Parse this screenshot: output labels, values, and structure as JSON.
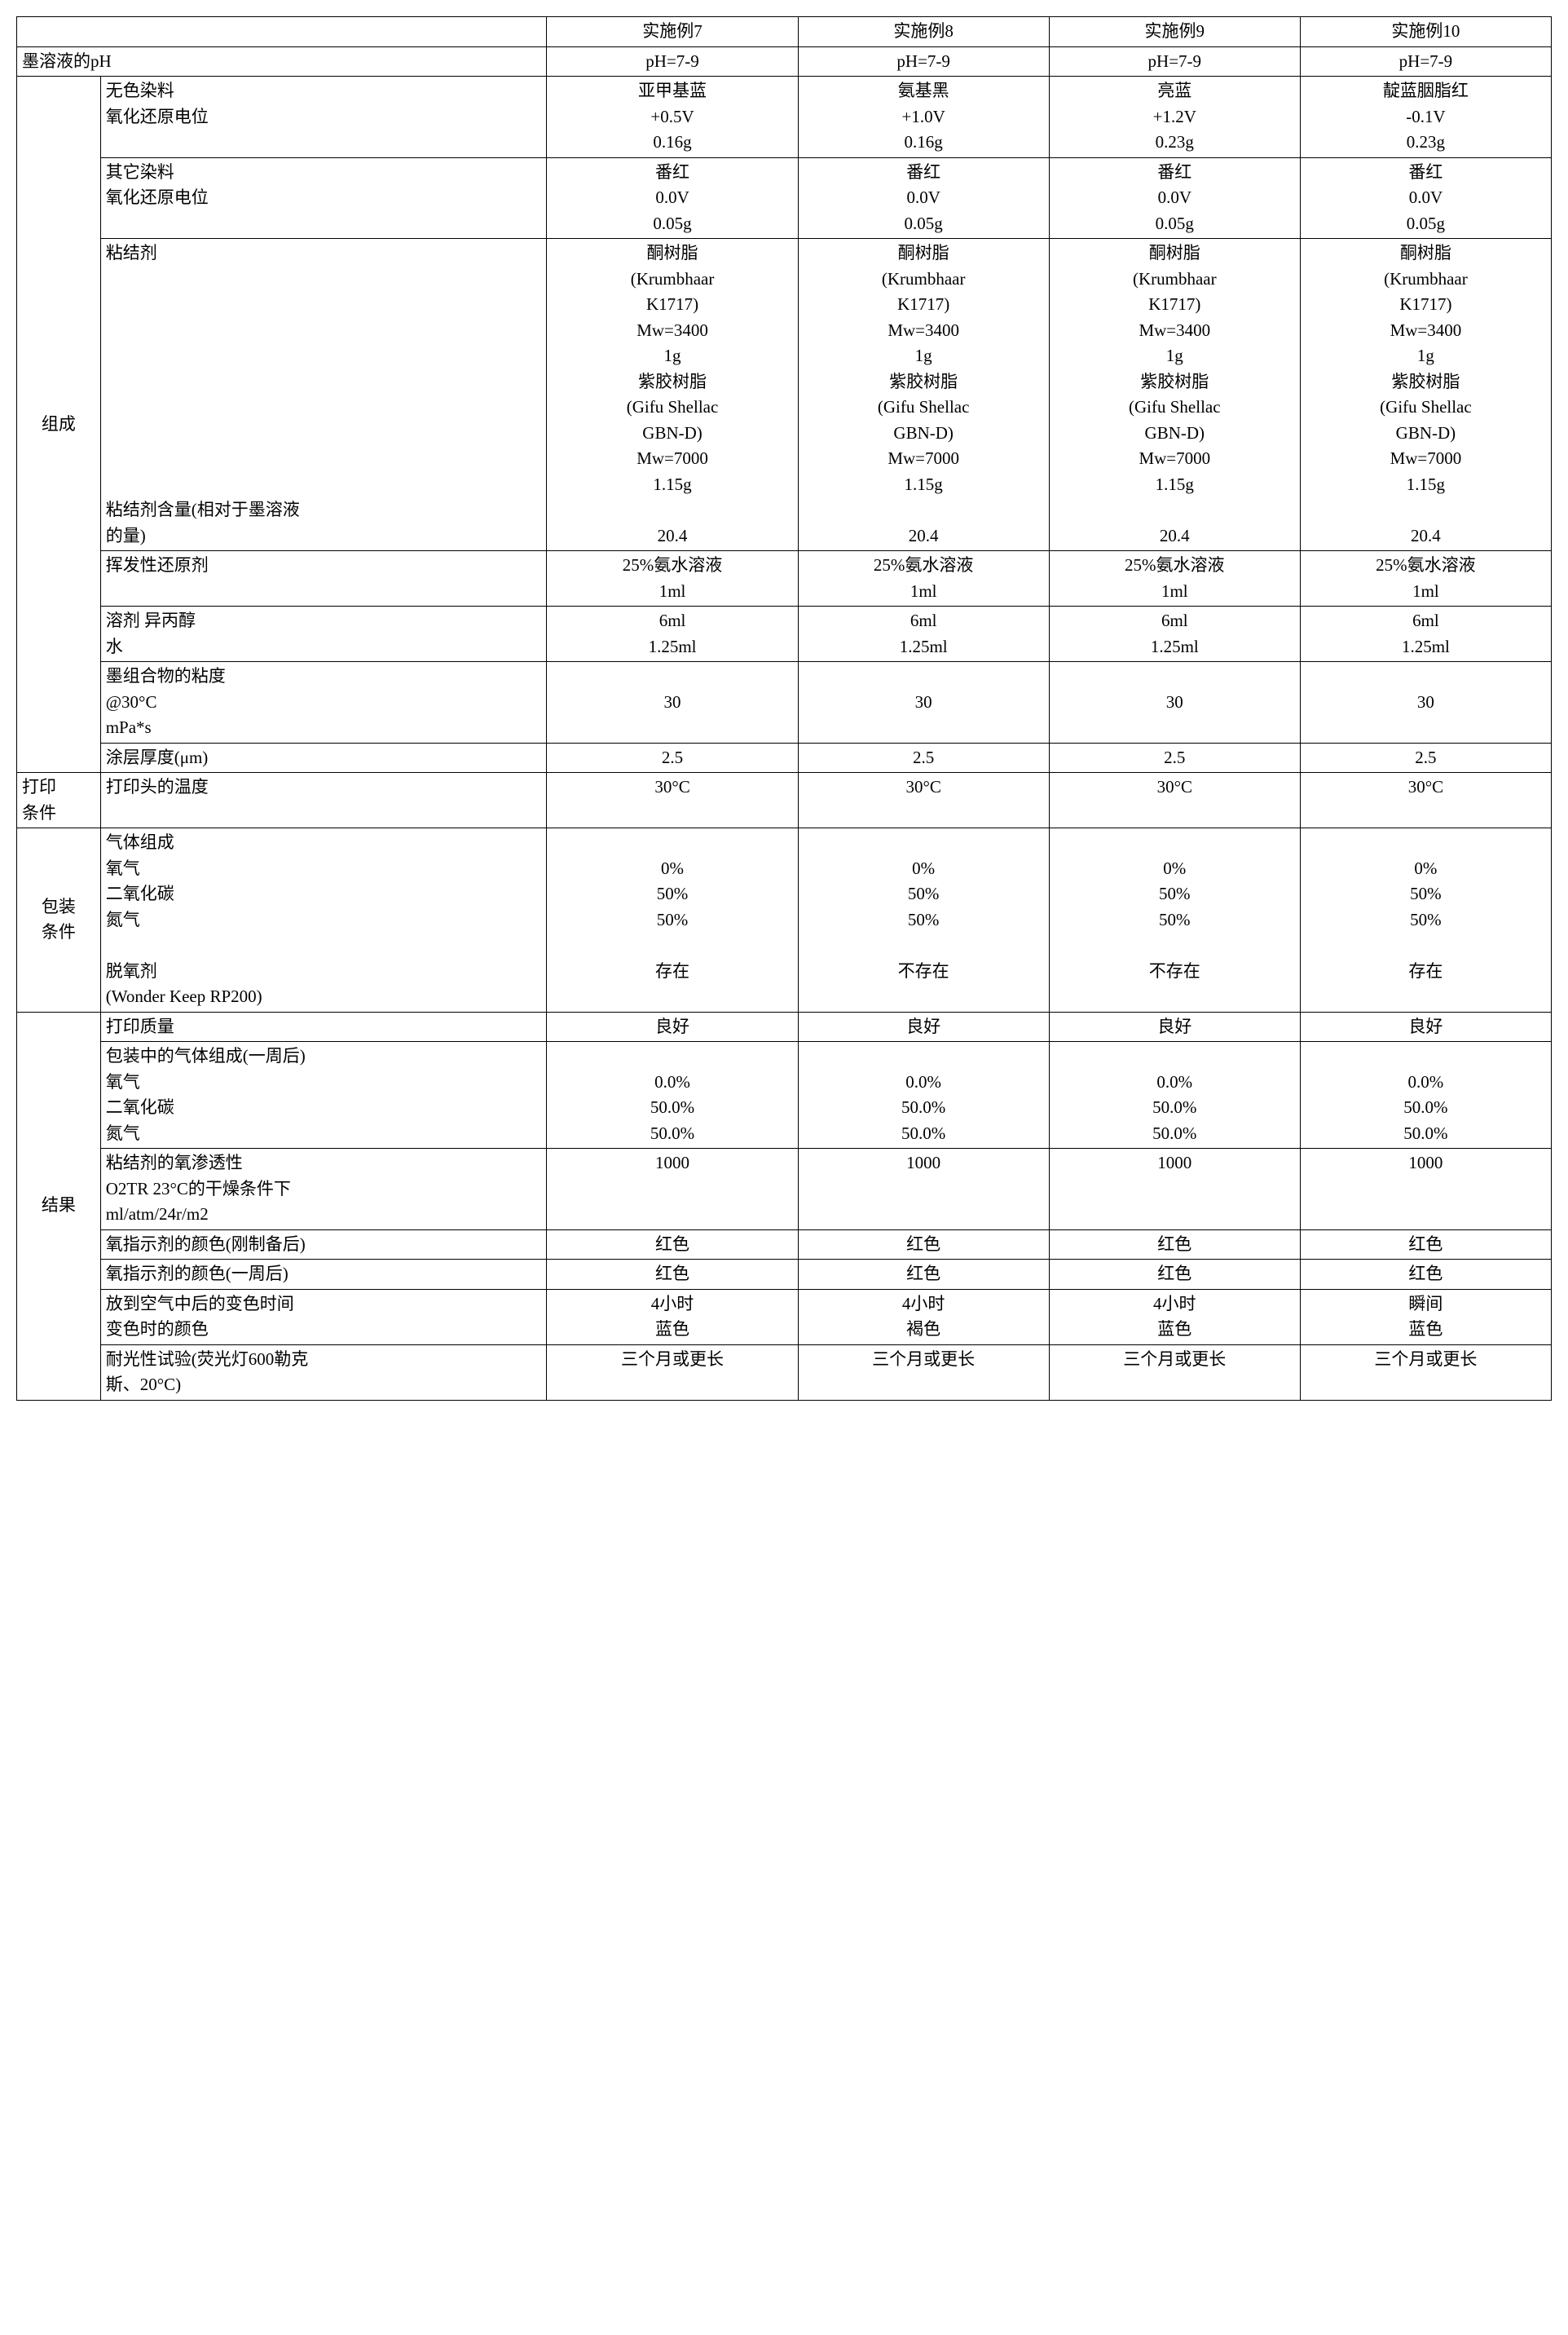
{
  "headers": {
    "blank": "",
    "col1": "实施例7",
    "col2": "实施例8",
    "col3": "实施例9",
    "col4": "实施例10"
  },
  "ph_row": {
    "label": "墨溶液的pH",
    "c1": "pH=7-9",
    "c2": "pH=7-9",
    "c3": "pH=7-9",
    "c4": "pH=7-9"
  },
  "composition": {
    "cat": "组成",
    "leuco": {
      "label_l1": "无色染料",
      "label_l2": "氧化还原电位",
      "c1_l1": "亚甲基蓝",
      "c1_l2": "+0.5V",
      "c1_l3": "0.16g",
      "c2_l1": "氨基黑",
      "c2_l2": "+1.0V",
      "c2_l3": "0.16g",
      "c3_l1": "亮蓝",
      "c3_l2": "+1.2V",
      "c3_l3": "0.23g",
      "c4_l1": "靛蓝胭脂红",
      "c4_l2": "-0.1V",
      "c4_l3": "0.23g"
    },
    "otherdye": {
      "label_l1": "其它染料",
      "label_l2": "氧化还原电位",
      "c1_l1": "番红",
      "c1_l2": "0.0V",
      "c1_l3": "0.05g",
      "c2_l1": "番红",
      "c2_l2": "0.0V",
      "c2_l3": "0.05g",
      "c3_l1": "番红",
      "c3_l2": "0.0V",
      "c3_l3": "0.05g",
      "c4_l1": "番红",
      "c4_l2": "0.0V",
      "c4_l3": "0.05g"
    },
    "binder": {
      "label_top": "粘结剂",
      "label_bot_l1": "粘结剂含量(相对于墨溶液",
      "label_bot_l2": "的量)",
      "c1_l1": "酮树脂",
      "c1_l2": "(Krumbhaar",
      "c1_l3": "K1717)",
      "c1_l4": "Mw=3400",
      "c1_l5": "1g",
      "c1_l6": "紫胶树脂",
      "c1_l7": "(Gifu Shellac",
      "c1_l8": "GBN-D)",
      "c1_l9": "Mw=7000",
      "c1_l10": "1.15g",
      "c1_l11": "",
      "c1_l12": "20.4",
      "c2_l1": "酮树脂",
      "c2_l2": "(Krumbhaar",
      "c2_l3": "K1717)",
      "c2_l4": "Mw=3400",
      "c2_l5": "1g",
      "c2_l6": "紫胶树脂",
      "c2_l7": "(Gifu Shellac",
      "c2_l8": "GBN-D)",
      "c2_l9": "Mw=7000",
      "c2_l10": "1.15g",
      "c2_l11": "",
      "c2_l12": "20.4",
      "c3_l1": "酮树脂",
      "c3_l2": "(Krumbhaar",
      "c3_l3": "K1717)",
      "c3_l4": "Mw=3400",
      "c3_l5": "1g",
      "c3_l6": "紫胶树脂",
      "c3_l7": "(Gifu Shellac",
      "c3_l8": "GBN-D)",
      "c3_l9": "Mw=7000",
      "c3_l10": "1.15g",
      "c3_l11": "",
      "c3_l12": "20.4",
      "c4_l1": "酮树脂",
      "c4_l2": "(Krumbhaar",
      "c4_l3": "K1717)",
      "c4_l4": "Mw=3400",
      "c4_l5": "1g",
      "c4_l6": "紫胶树脂",
      "c4_l7": "(Gifu Shellac",
      "c4_l8": "GBN-D)",
      "c4_l9": "Mw=7000",
      "c4_l10": "1.15g",
      "c4_l11": "",
      "c4_l12": "20.4"
    },
    "volreducer": {
      "label": "挥发性还原剂",
      "c1_l1": "25%氨水溶液",
      "c1_l2": "1ml",
      "c2_l1": "25%氨水溶液",
      "c2_l2": "1ml",
      "c3_l1": "25%氨水溶液",
      "c3_l2": "1ml",
      "c4_l1": "25%氨水溶液",
      "c4_l2": "1ml"
    },
    "solvent": {
      "label_l1": "溶剂  异丙醇",
      "label_l2": "水",
      "c1_l1": "6ml",
      "c1_l2": "1.25ml",
      "c2_l1": "6ml",
      "c2_l2": "1.25ml",
      "c3_l1": "6ml",
      "c3_l2": "1.25ml",
      "c4_l1": "6ml",
      "c4_l2": "1.25ml"
    },
    "viscosity": {
      "label_l1": "墨组合物的粘度",
      "label_l2": "@30°C",
      "label_l3": "mPa*s",
      "c1": "30",
      "c2": "30",
      "c3": "30",
      "c4": "30"
    },
    "thickness": {
      "label": "涂层厚度(μm)",
      "c1": "2.5",
      "c2": "2.5",
      "c3": "2.5",
      "c4": "2.5"
    }
  },
  "printcond": {
    "cat_l1": "打印",
    "cat_l2": "条件",
    "label": "打印头的温度",
    "c1": "30°C",
    "c2": "30°C",
    "c3": "30°C",
    "c4": "30°C"
  },
  "packcond": {
    "cat_l1": "包装",
    "cat_l2": "条件",
    "label_l1": "气体组成",
    "label_l2": "氧气",
    "label_l3": "二氧化碳",
    "label_l4": "氮气",
    "label_l5": "",
    "label_l6": "脱氧剂",
    "label_l7": "(Wonder Keep RP200)",
    "c1_l2": "0%",
    "c1_l3": "50%",
    "c1_l4": "50%",
    "c1_l6": "存在",
    "c2_l2": "0%",
    "c2_l3": "50%",
    "c2_l4": "50%",
    "c2_l6": "不存在",
    "c3_l2": "0%",
    "c3_l3": "50%",
    "c3_l4": "50%",
    "c3_l6": "不存在",
    "c4_l2": "0%",
    "c4_l3": "50%",
    "c4_l4": "50%",
    "c4_l6": "存在"
  },
  "results": {
    "cat": "结果",
    "quality": {
      "label": "打印质量",
      "c1": "良好",
      "c2": "良好",
      "c3": "良好",
      "c4": "良好"
    },
    "gascomp": {
      "label_l1": "包装中的气体组成(一周后)",
      "label_l2": "氧气",
      "label_l3": "二氧化碳",
      "label_l4": "氮气",
      "c1_l2": "0.0%",
      "c1_l3": "50.0%",
      "c1_l4": "50.0%",
      "c2_l2": "0.0%",
      "c2_l3": "50.0%",
      "c2_l4": "50.0%",
      "c3_l2": "0.0%",
      "c3_l3": "50.0%",
      "c3_l4": "50.0%",
      "c4_l2": "0.0%",
      "c4_l3": "50.0%",
      "c4_l4": "50.0%"
    },
    "o2perm": {
      "label_l1": "粘结剂的氧渗透性",
      "label_l2": "O2TR 23°C的干燥条件下",
      "label_l3": "ml/atm/24r/m2",
      "c1": "1000",
      "c2": "1000",
      "c3": "1000",
      "c4": "1000"
    },
    "colorinit": {
      "label": "氧指示剂的颜色(刚制备后)",
      "c1": "红色",
      "c2": "红色",
      "c3": "红色",
      "c4": "红色"
    },
    "colorweek": {
      "label": "氧指示剂的颜色(一周后)",
      "c1": "红色",
      "c2": "红色",
      "c3": "红色",
      "c4": "红色"
    },
    "colorchange": {
      "label_l1": "放到空气中后的变色时间",
      "label_l2": "变色时的颜色",
      "c1_l1": "4小时",
      "c1_l2": "蓝色",
      "c2_l1": "4小时",
      "c2_l2": "褐色",
      "c3_l1": "4小时",
      "c3_l2": "蓝色",
      "c4_l1": "瞬间",
      "c4_l2": "蓝色"
    },
    "lightfast": {
      "label_l1": "耐光性试验(荧光灯600勒克",
      "label_l2": "斯、20°C)",
      "c1": "三个月或更长",
      "c2": "三个月或更长",
      "c3": "三个月或更长",
      "c4": "三个月或更长"
    }
  }
}
